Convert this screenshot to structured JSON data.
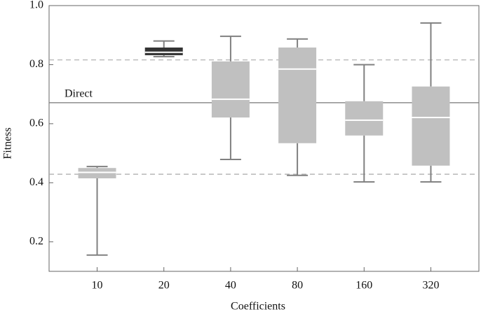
{
  "chart_data": {
    "type": "box",
    "x_label": "Coefficients",
    "y_label": "Fitness",
    "categories": [
      "10",
      "20",
      "40",
      "80",
      "160",
      "320"
    ],
    "boxes": [
      {
        "min": 0.155,
        "q1": 0.415,
        "median": 0.435,
        "q3": 0.45,
        "max": 0.455,
        "color": "#c0c0c0"
      },
      {
        "min": 0.827,
        "q1": 0.832,
        "median": 0.842,
        "q3": 0.858,
        "max": 0.88,
        "color": "#333333"
      },
      {
        "min": 0.479,
        "q1": 0.621,
        "median": 0.683,
        "q3": 0.811,
        "max": 0.896,
        "color": "#c0c0c0"
      },
      {
        "min": 0.425,
        "q1": 0.534,
        "median": 0.785,
        "q3": 0.858,
        "max": 0.887,
        "color": "#c0c0c0"
      },
      {
        "min": 0.403,
        "q1": 0.56,
        "median": 0.612,
        "q3": 0.676,
        "max": 0.8,
        "color": "#c0c0c0"
      },
      {
        "min": 0.403,
        "q1": 0.458,
        "median": 0.621,
        "q3": 0.726,
        "max": 0.941,
        "color": "#c0c0c0"
      }
    ],
    "reference_lines": [
      {
        "value": 0.671,
        "label": "Direct",
        "style": "solid"
      },
      {
        "value": 0.816,
        "style": "dashed"
      },
      {
        "value": 0.429,
        "style": "dashed"
      }
    ],
    "ylim": [
      0.1,
      1.0
    ],
    "yticks": [
      0.2,
      0.4,
      0.6,
      {
        "value": 0.8,
        "label": "0.8"
      },
      {
        "value": 1.0,
        "label": "1.0"
      }
    ]
  }
}
